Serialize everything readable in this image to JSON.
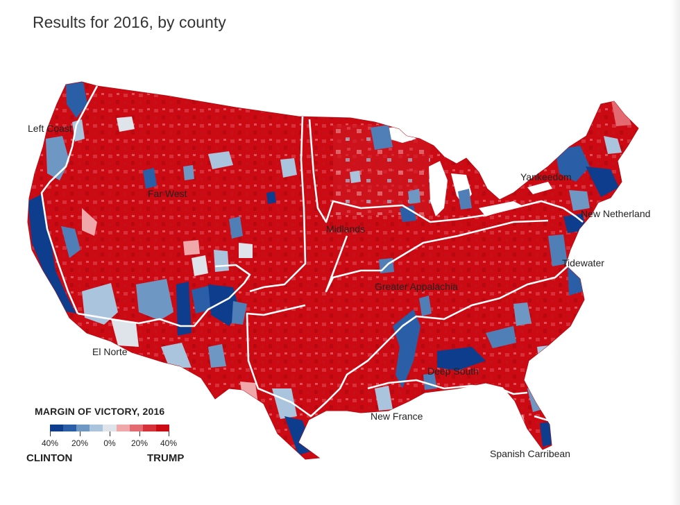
{
  "title": "Results for 2016, by county",
  "colors": {
    "trump_strong": "#cc0a14",
    "trump_mid": "#dc4a52",
    "trump_light": "#f0a7aa",
    "neutral": "#dfe4ea",
    "clinton_light": "#a9c4dc",
    "clinton_mid": "#4f7fb6",
    "clinton_strong": "#0d3d8c",
    "region_border": "#ffffff"
  },
  "regions": [
    {
      "name": "Left Coast"
    },
    {
      "name": "Far West"
    },
    {
      "name": "Midlands"
    },
    {
      "name": "Yankeedom"
    },
    {
      "name": "New Netherland"
    },
    {
      "name": "Tidewater"
    },
    {
      "name": "Greater Appalachia"
    },
    {
      "name": "El Norte"
    },
    {
      "name": "Deep South"
    },
    {
      "name": "New France"
    },
    {
      "name": "Spanish Carribean"
    }
  ],
  "legend": {
    "title": "MARGIN OF VICTORY, 2016",
    "ticks": [
      "40%",
      "20%",
      "0%",
      "20%",
      "40%"
    ],
    "left_candidate": "CLINTON",
    "right_candidate": "TRUMP",
    "swatches": [
      "#0d3d8c",
      "#2a5ea6",
      "#6e97c4",
      "#a9c4dc",
      "#dfe4ea",
      "#f0a7aa",
      "#e26a70",
      "#d63038",
      "#cc0a14"
    ]
  }
}
